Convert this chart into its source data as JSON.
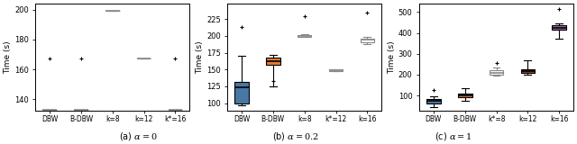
{
  "subplots": [
    {
      "title": "(a) $\\alpha = 0$",
      "ylabel": "Time (s)",
      "ylim": [
        132,
        204
      ],
      "yticks": [
        140,
        160,
        180,
        200
      ],
      "categories": [
        "DBW",
        "B-DBW",
        "k=8",
        "k=12",
        "k*=16"
      ],
      "boxes": [
        {
          "q1": 133,
          "median": 133,
          "q3": 133,
          "whislo": 133,
          "whishi": 133,
          "fliers": [
            167
          ],
          "color": "none",
          "ecolor": "#888888",
          "collapsed": true
        },
        {
          "q1": 133,
          "median": 133,
          "q3": 133,
          "whislo": 133,
          "whishi": 133,
          "fliers": [
            167
          ],
          "color": "none",
          "ecolor": "#888888",
          "collapsed": true
        },
        {
          "q1": 199,
          "median": 199,
          "q3": 199,
          "whislo": 199,
          "whishi": 199,
          "fliers": [],
          "color": "none",
          "ecolor": "#888888",
          "collapsed": true
        },
        {
          "q1": 167,
          "median": 167,
          "q3": 167,
          "whislo": 167,
          "whishi": 167,
          "fliers": [],
          "color": "none",
          "ecolor": "#888888",
          "collapsed": true
        },
        {
          "q1": 133,
          "median": 133,
          "q3": 133,
          "whislo": 133,
          "whishi": 133,
          "fliers": [
            167
          ],
          "color": "none",
          "ecolor": "#888888",
          "collapsed": true
        }
      ]
    },
    {
      "title": "(b) $\\alpha = 0.2$",
      "ylabel": "Time (s)",
      "ylim": [
        88,
        248
      ],
      "yticks": [
        100,
        125,
        150,
        175,
        200,
        225
      ],
      "categories": [
        "DBW",
        "B-DBW",
        "k=8",
        "k*=12",
        "k=16"
      ],
      "boxes": [
        {
          "q1": 100,
          "median": 124,
          "q3": 132,
          "whislo": 97,
          "whishi": 170,
          "fliers": [
            214
          ],
          "color": "#4878a4",
          "ecolor": "black",
          "collapsed": false
        },
        {
          "q1": 157,
          "median": 163,
          "q3": 168,
          "whislo": 125,
          "whishi": 172,
          "fliers": [
            133
          ],
          "color": "#e07b31",
          "ecolor": "black",
          "collapsed": false
        },
        {
          "q1": 199,
          "median": 200,
          "q3": 201,
          "whislo": 198,
          "whishi": 202,
          "fliers": [
            230
          ],
          "color": "none",
          "ecolor": "#888888",
          "collapsed": false
        },
        {
          "q1": 148,
          "median": 149,
          "q3": 150,
          "whislo": 148,
          "whishi": 150,
          "fliers": [],
          "color": "none",
          "ecolor": "#888888",
          "collapsed": false
        },
        {
          "q1": 190,
          "median": 194,
          "q3": 196,
          "whislo": 188,
          "whishi": 198,
          "fliers": [
            235
          ],
          "color": "none",
          "ecolor": "#888888",
          "collapsed": false
        }
      ]
    },
    {
      "title": "(c) $\\alpha = 1$",
      "ylabel": "Time (s)",
      "ylim": [
        25,
        540
      ],
      "yticks": [
        100,
        200,
        300,
        400,
        500
      ],
      "categories": [
        "DBW",
        "B-DBW",
        "k*=8",
        "k=12",
        "k=16"
      ],
      "boxes": [
        {
          "q1": 63,
          "median": 75,
          "q3": 85,
          "whislo": 45,
          "whishi": 97,
          "fliers": [
            125
          ],
          "color": "#4878a4",
          "ecolor": "black",
          "collapsed": false
        },
        {
          "q1": 90,
          "median": 100,
          "q3": 110,
          "whislo": 75,
          "whishi": 135,
          "fliers": [],
          "color": "#e07b31",
          "ecolor": "black",
          "collapsed": false
        },
        {
          "q1": 200,
          "median": 210,
          "q3": 220,
          "whislo": 195,
          "whishi": 235,
          "fliers": [
            255
          ],
          "color": "none",
          "ecolor": "#888888",
          "collapsed": false
        },
        {
          "q1": 207,
          "median": 217,
          "q3": 225,
          "whislo": 200,
          "whishi": 270,
          "fliers": [],
          "color": "#a83232",
          "ecolor": "#888888",
          "collapsed": false
        },
        {
          "q1": 415,
          "median": 425,
          "q3": 435,
          "whislo": 372,
          "whishi": 447,
          "fliers": [
            515
          ],
          "color": "#9966aa",
          "ecolor": "#888888",
          "collapsed": false
        }
      ]
    }
  ],
  "fig_width": 6.4,
  "fig_height": 1.6,
  "dpi": 100
}
